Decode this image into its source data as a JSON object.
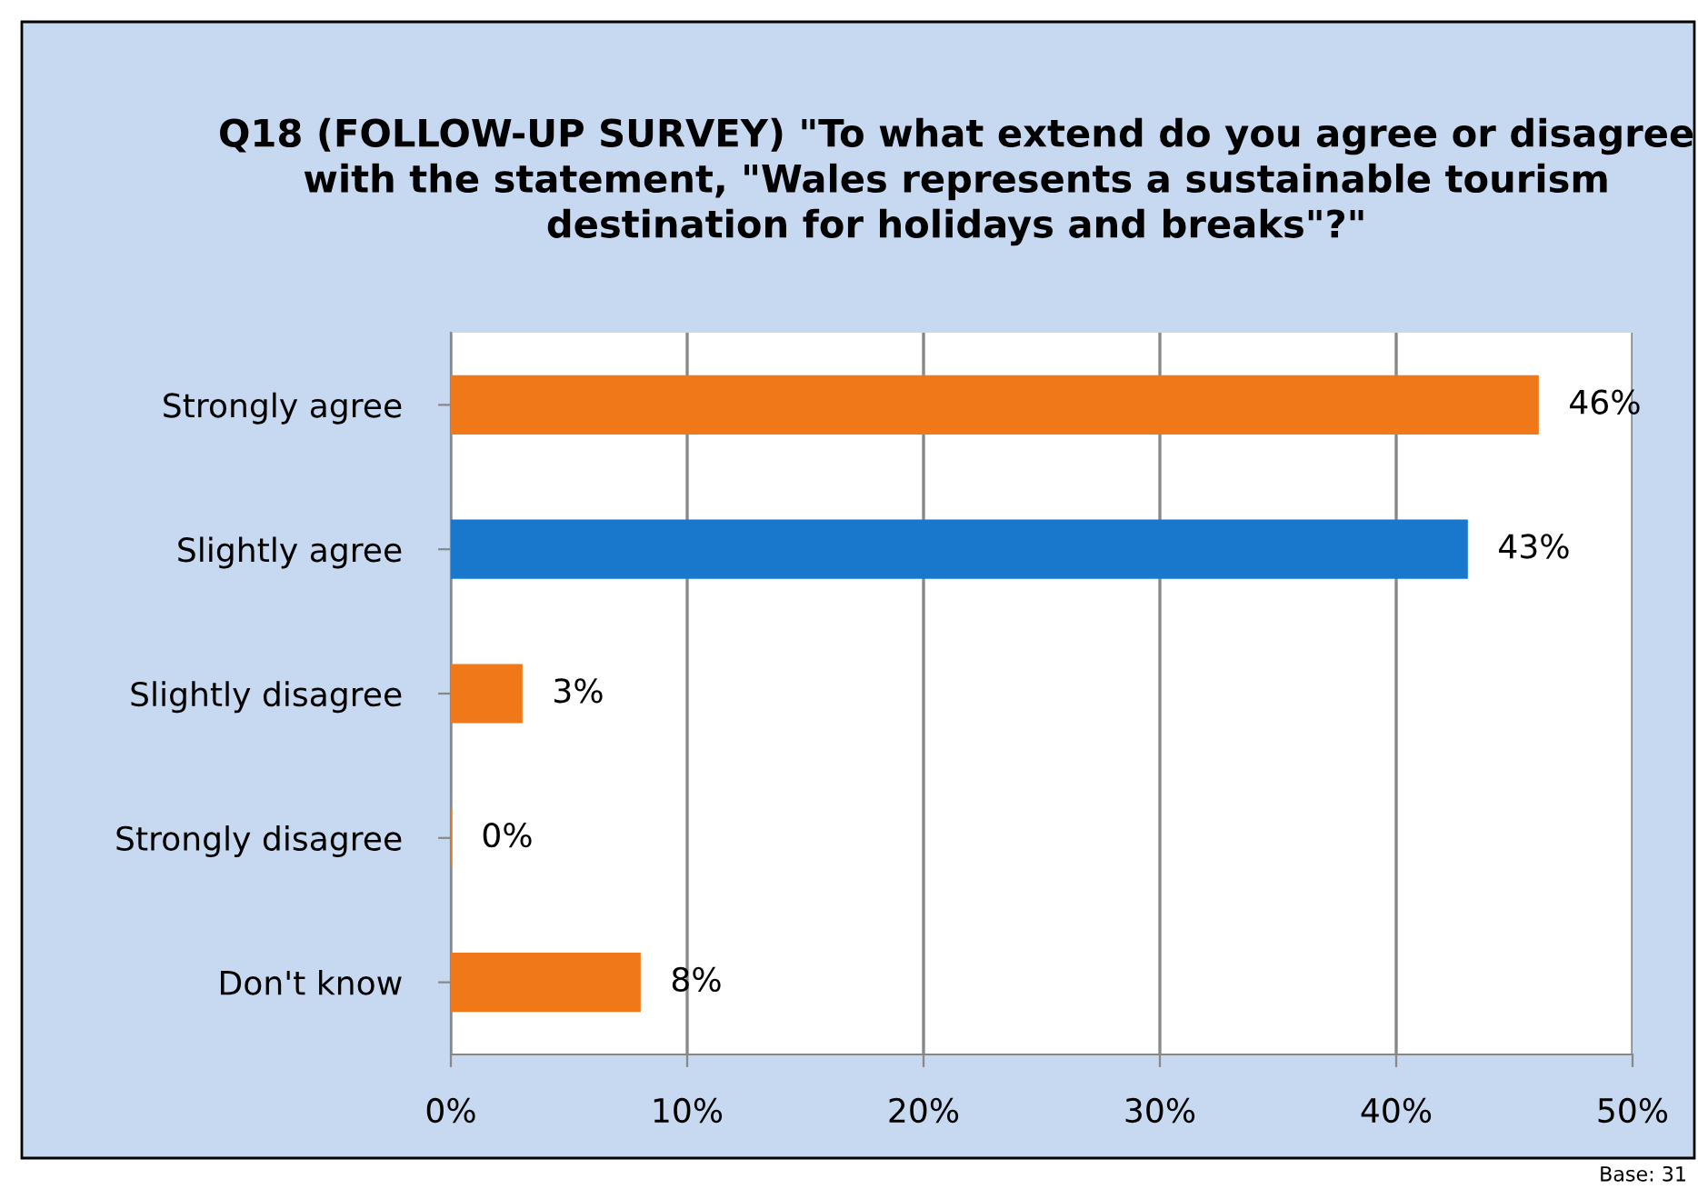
{
  "chart_data": {
    "type": "bar",
    "orientation": "horizontal",
    "title": "Q18 (FOLLOW-UP SURVEY) \"To what extend do you agree or disagree with the statement, \"Wales represents a sustainable tourism destination for holidays and breaks\"?\"",
    "categories": [
      "Strongly agree",
      "Slightly agree",
      "Slightly disagree",
      "Strongly disagree",
      "Don't know"
    ],
    "values": [
      46,
      43,
      3,
      0,
      8
    ],
    "colors": [
      "#f07818",
      "#1a78cc",
      "#f07818",
      "#f07818",
      "#f07818"
    ],
    "value_labels": [
      "46%",
      "43%",
      "3%",
      "0%",
      "8%"
    ],
    "xlim": [
      0,
      50
    ],
    "xticks": [
      {
        "value": 0,
        "label": "0%"
      },
      {
        "value": 10,
        "label": "10%"
      },
      {
        "value": 20,
        "label": "20%"
      },
      {
        "value": 30,
        "label": "30%"
      },
      {
        "value": 40,
        "label": "40%"
      },
      {
        "value": 50,
        "label": "50%"
      }
    ],
    "grid": "x",
    "annotations": [
      "Base: 31"
    ]
  }
}
